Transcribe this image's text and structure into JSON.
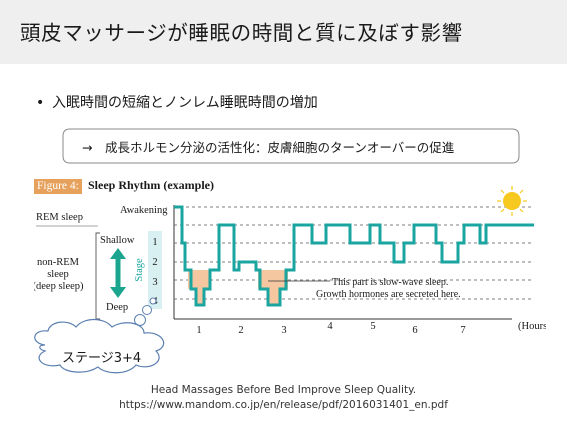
{
  "slide": {
    "title": "頭皮マッサージが睡眠の時間と質に及ぼす影響",
    "bullet_symbol": "•",
    "bullet_text": "入眠時間の短縮とノンレム睡眠時間の増加",
    "callout_text": "→　成長ホルモン分泌の活性化：皮膚細胞のターンオーバーの促進",
    "cloud_text": "ステージ3+4",
    "caption_line1": "Head Massages Before Bed Improve Sleep Quality.",
    "caption_line2": "https://www.mandom.co.jp/en/release/pdf/2016031401_en.pdf"
  },
  "figure": {
    "label": "Figure 4:",
    "title": "Sleep Rhythm (example)",
    "rem_label": "REM sleep",
    "awakening_label": "Awakening",
    "nonrem_label_lines": [
      "non-REM",
      "sleep",
      "(deep sleep)"
    ],
    "shallow_label": "Shallow",
    "deep_label": "Deep",
    "stage_axis_label": "Stage",
    "stage_ticks": [
      "1",
      "2",
      "3",
      "4"
    ],
    "annotation_lines": [
      "This part is slow-wave sleep.",
      "Growth hormones are secreted here."
    ],
    "x_ticks": [
      "1",
      "2",
      "3",
      "4",
      "5",
      "6",
      "7"
    ],
    "x_unit": "(Hours)"
  },
  "colors": {
    "title_bar": "#efefef",
    "line": "#1aa5a0",
    "arrow": "#1aa58e",
    "deep_fill": "#f4c7a1",
    "figure_label_bg": "#e6a15c",
    "stage_box": "#d9f0f2",
    "sun": "#f7c81e"
  }
}
